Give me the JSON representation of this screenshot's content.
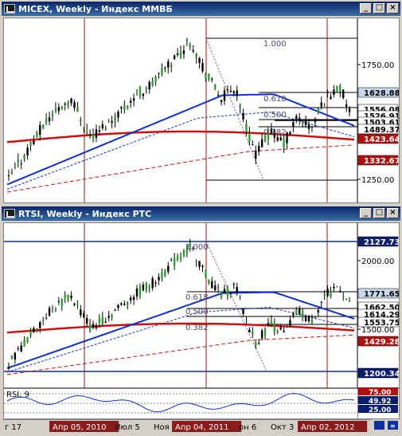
{
  "windows": {
    "top": {
      "title": "MICEX, Weekly - Индекс ММВБ"
    },
    "bottom": {
      "title": "RTSI, Weekly - Индекс РТС"
    }
  },
  "buttons": {
    "minimize": "_",
    "maximize": "□",
    "close": "×"
  },
  "top_chart": {
    "price_labels": [
      "1750.00",
      "1250.00"
    ],
    "boxed_labels": [
      {
        "text": "1628.88",
        "bg": "#c8d8ee",
        "fg": "#000000"
      },
      {
        "text": "1556.08",
        "bg": "#ffffff",
        "fg": "#000000"
      },
      {
        "text": "1526.91",
        "bg": "#ffffff",
        "fg": "#000000"
      },
      {
        "text": "1503.61",
        "bg": "#ffffff",
        "fg": "#000000"
      },
      {
        "text": "1489.37",
        "bg": "#ffffff",
        "fg": "#000000"
      },
      {
        "text": "1423.64",
        "bg": "#b01010",
        "fg": "#ffffff"
      },
      {
        "text": "1332.67",
        "bg": "#b01010",
        "fg": "#ffffff"
      }
    ],
    "fib_labels": [
      "1.000",
      "0.618",
      "0.500",
      "0.382"
    ]
  },
  "bottom_chart": {
    "price_labels": [
      "2000.00",
      "1500.00"
    ],
    "boxed_labels": [
      {
        "text": "2127.73",
        "bg": "#0a1e6e",
        "fg": "#ffffff"
      },
      {
        "text": "1771.65",
        "bg": "#c8d8ee",
        "fg": "#000000"
      },
      {
        "text": "1662.50",
        "bg": "#ffffff",
        "fg": "#000000"
      },
      {
        "text": "1614.29",
        "bg": "#ffffff",
        "fg": "#000000"
      },
      {
        "text": "1553.75",
        "bg": "#ffffff",
        "fg": "#000000"
      },
      {
        "text": "1429.28",
        "bg": "#b01010",
        "fg": "#ffffff"
      },
      {
        "text": "1200.34",
        "bg": "#0a1e6e",
        "fg": "#ffffff"
      }
    ],
    "fib_labels": [
      "1.000",
      "0.618",
      "0.500",
      "0.382"
    ],
    "rsi": {
      "label": "RSI, 9",
      "levels": [
        {
          "text": "75.00",
          "bg": "#b01010",
          "fg": "#ffffff"
        },
        {
          "text": "49.92",
          "bg": "#0a1e6e",
          "fg": "#ffffff"
        },
        {
          "text": "25.00",
          "bg": "#0a1e6e",
          "fg": "#ffffff"
        }
      ]
    }
  },
  "time_axis": [
    {
      "text": "г 17",
      "highlight": false
    },
    {
      "text": "Апр 05, 2010",
      "highlight": true
    },
    {
      "text": "Июл 5",
      "highlight": false
    },
    {
      "text": "Ноя",
      "highlight": false
    },
    {
      "text": "Апр 04, 2011",
      "highlight": true
    },
    {
      "text": "он 6",
      "highlight": false
    },
    {
      "text": "Окт 3",
      "highlight": false
    },
    {
      "text": "Апр 02, 2012",
      "highlight": true
    }
  ],
  "colors": {
    "bull": "#2e9e2e",
    "bear": "#000000",
    "ma_fast": "#1030d0",
    "ma_slow": "#d01010",
    "vline": "#8b1a1a"
  }
}
